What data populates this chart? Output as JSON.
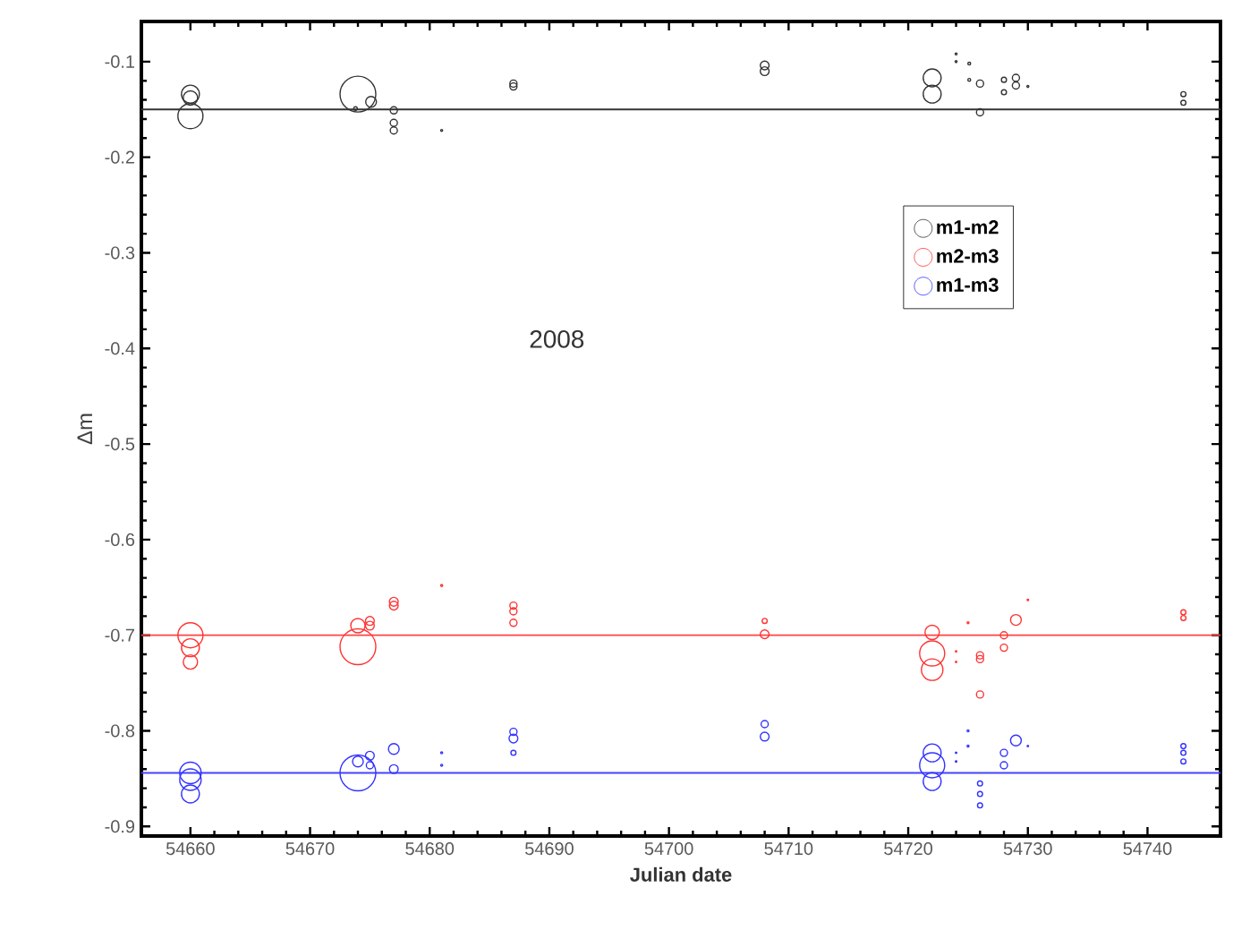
{
  "chart_data": {
    "type": "bubble",
    "xlabel": "Julian date",
    "ylabel": "Δm",
    "xlim": [
      54655.9,
      54746.1
    ],
    "ylim": [
      -0.91,
      -0.058
    ],
    "xticks": [
      54660,
      54670,
      54680,
      54690,
      54700,
      54710,
      54720,
      54730,
      54740
    ],
    "yticks": [
      -0.9,
      -0.8,
      -0.7,
      -0.6,
      -0.5,
      -0.4,
      -0.3,
      -0.2,
      -0.1
    ],
    "marker": "circle",
    "legend": "top right",
    "grid": false,
    "annotations": [
      "2008"
    ],
    "ref_lines": [
      {
        "axis": "y",
        "value": -0.15,
        "color": "#333333"
      },
      {
        "axis": "y",
        "value": -0.7,
        "color": "#ff4444"
      },
      {
        "axis": "y",
        "value": -0.844,
        "color": "#4444ff"
      }
    ],
    "series": [
      {
        "name": "m1-m2",
        "color": "#333333",
        "x": [
          54660,
          54660,
          54660,
          54674,
          54675.1,
          54673.8,
          54677,
          54677,
          54677,
          54681,
          54687,
          54687,
          54708,
          54708,
          54722,
          54722,
          54724,
          54724,
          54725.1,
          54725.1,
          54726,
          54726,
          54728,
          54728,
          54729,
          54729,
          54730,
          54743,
          54743
        ],
        "values": [
          -0.134,
          -0.138,
          -0.157,
          -0.134,
          -0.142,
          -0.149,
          -0.151,
          -0.164,
          -0.172,
          -0.172,
          -0.123,
          -0.126,
          -0.104,
          -0.11,
          -0.117,
          -0.134,
          -0.092,
          -0.1,
          -0.102,
          -0.119,
          -0.123,
          -0.153,
          -0.119,
          -0.132,
          -0.117,
          -0.125,
          -0.126,
          -0.134,
          -0.143
        ],
        "sizes": [
          0.25,
          0.16,
          0.49,
          1,
          0.09,
          0.01,
          0.04,
          0.04,
          0.04,
          0.003,
          0.04,
          0.04,
          0.06,
          0.06,
          0.25,
          0.25,
          0.003,
          0.003,
          0.006,
          0.006,
          0.04,
          0.04,
          0.02,
          0.02,
          0.04,
          0.04,
          0.003,
          0.02,
          0.02
        ]
      },
      {
        "name": "m2-m3",
        "color": "#ff3333",
        "x": [
          54660,
          54660,
          54660,
          54674,
          54674,
          54675,
          54675,
          54677,
          54677,
          54681,
          54687,
          54687,
          54687,
          54708,
          54708,
          54722,
          54722,
          54722,
          54724,
          54724,
          54725,
          54726,
          54726,
          54726,
          54728,
          54728,
          54729,
          54730,
          54743,
          54743
        ],
        "values": [
          -0.7,
          -0.713,
          -0.728,
          -0.69,
          -0.712,
          -0.685,
          -0.69,
          -0.665,
          -0.669,
          -0.648,
          -0.669,
          -0.675,
          -0.687,
          -0.685,
          -0.699,
          -0.697,
          -0.719,
          -0.736,
          -0.717,
          -0.728,
          -0.687,
          -0.721,
          -0.725,
          -0.762,
          -0.7,
          -0.713,
          -0.684,
          -0.663,
          -0.676,
          -0.682
        ],
        "sizes": [
          0.49,
          0.25,
          0.16,
          0.16,
          1,
          0.06,
          0.06,
          0.06,
          0.06,
          0.003,
          0.04,
          0.04,
          0.04,
          0.02,
          0.06,
          0.16,
          0.49,
          0.36,
          0.001,
          0.001,
          0.003,
          0.04,
          0.04,
          0.04,
          0.04,
          0.04,
          0.09,
          0.001,
          0.02,
          0.02
        ]
      },
      {
        "name": "m1-m3",
        "color": "#3333ff",
        "x": [
          54660,
          54660,
          54660,
          54674,
          54674,
          54675,
          54675,
          54677,
          54677,
          54681,
          54681,
          54687,
          54687,
          54687,
          54708,
          54708,
          54722,
          54722,
          54722,
          54724,
          54724,
          54725,
          54725,
          54726,
          54726,
          54726,
          54728,
          54728,
          54729,
          54730,
          54743,
          54743,
          54743
        ],
        "values": [
          -0.844,
          -0.851,
          -0.866,
          -0.832,
          -0.844,
          -0.826,
          -0.836,
          -0.819,
          -0.84,
          -0.823,
          -0.836,
          -0.801,
          -0.808,
          -0.823,
          -0.793,
          -0.806,
          -0.823,
          -0.836,
          -0.853,
          -0.823,
          -0.832,
          -0.8,
          -0.816,
          -0.855,
          -0.866,
          -0.878,
          -0.823,
          -0.836,
          -0.81,
          -0.816,
          -0.816,
          -0.823,
          -0.832
        ],
        "sizes": [
          0.36,
          0.36,
          0.25,
          0.09,
          1,
          0.06,
          0.04,
          0.09,
          0.06,
          0.003,
          0.003,
          0.04,
          0.06,
          0.02,
          0.04,
          0.06,
          0.25,
          0.49,
          0.25,
          0.001,
          0.001,
          0.003,
          0.003,
          0.02,
          0.02,
          0.02,
          0.04,
          0.04,
          0.09,
          0.001,
          0.02,
          0.02,
          0.02
        ]
      }
    ]
  }
}
